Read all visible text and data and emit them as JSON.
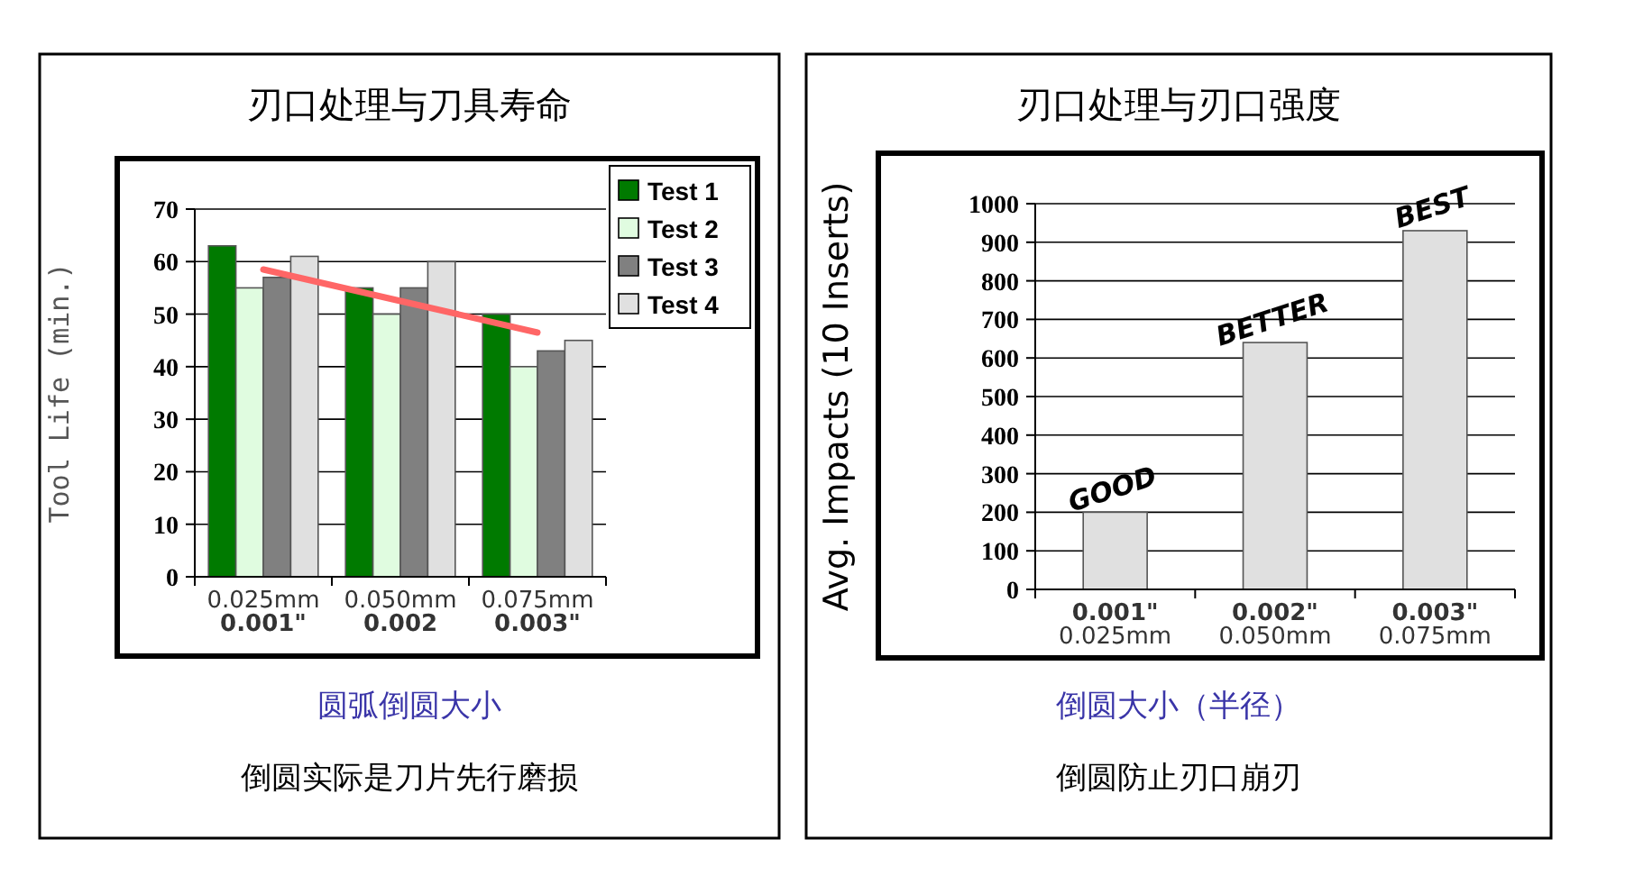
{
  "chart_data": [
    {
      "type": "bar",
      "title": "刃口处理与刀具寿命",
      "xlabel": "圆弧倒圆大小",
      "ylabel": "Tool Life (min.)",
      "categories": [
        "0.025mm\n**0.001\"**",
        "0.050mm\n**0.002**",
        "0.075mm\n**0.003\"**"
      ],
      "series": [
        {
          "name": "Test 1",
          "color": "#007a00",
          "values": [
            63,
            55,
            50
          ]
        },
        {
          "name": "Test 2",
          "color": "#e0fce0",
          "values": [
            55,
            50,
            40
          ]
        },
        {
          "name": "Test 3",
          "color": "#808080",
          "values": [
            57,
            55,
            43
          ]
        },
        {
          "name": "Test 4",
          "color": "#e0e0e0",
          "values": [
            61,
            60,
            45
          ]
        },
        {
          "type": "line",
          "color": "#ff6666",
          "values": [
            58.5,
            52.5,
            46.5
          ]
        }
      ],
      "ylim": [
        0,
        70
      ],
      "yticks": [
        0,
        10,
        20,
        30,
        40,
        50,
        60,
        70
      ],
      "grid": "y",
      "legend": "top right",
      "annotations": [
        "倒圆实际是刀片先行磨损"
      ]
    },
    {
      "type": "bar",
      "title": "刃口处理与刃口强度",
      "xlabel": "倒圆大小（半径）",
      "ylabel": "Avg. Impacts (10 Inserts)",
      "categories": [
        "**0.001\"**\n0.025mm",
        "**0.002\"**\n0.050mm",
        "**0.003\"**\n0.075mm"
      ],
      "values": [
        200,
        640,
        930
      ],
      "color": "#e0e0e0",
      "ylim": [
        0,
        1000
      ],
      "yticks": [
        0,
        100,
        200,
        300,
        400,
        500,
        600,
        700,
        800,
        900,
        1000
      ],
      "grid": "y",
      "annotations": [
        {
          "text": "GOOD",
          "x": "**0.001\"**\n0.025mm",
          "y": 200
        },
        {
          "text": "BETTER",
          "x": "**0.002\"**\n0.050mm",
          "y": 640
        },
        {
          "text": "BEST",
          "x": "**0.003\"**\n0.075mm",
          "y": 930
        },
        "倒圆防止刃口崩刃"
      ]
    }
  ]
}
